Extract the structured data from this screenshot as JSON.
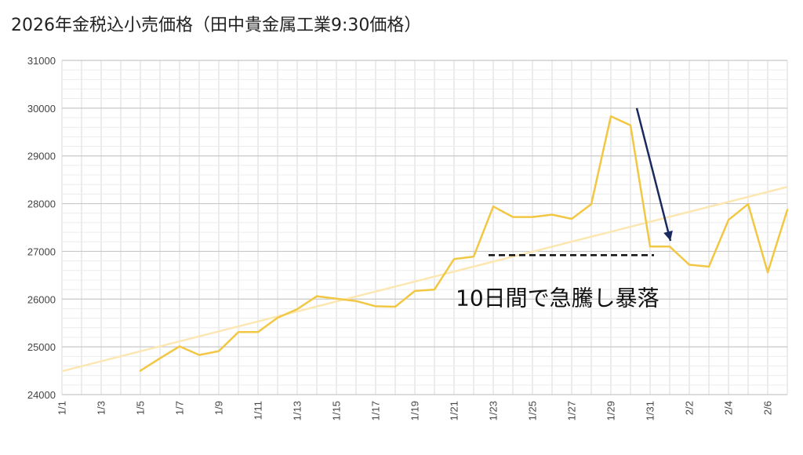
{
  "chart_data": {
    "type": "line",
    "title": "2026年金税込小売価格（田中貴金属工業9:30価格）",
    "xlabel": "",
    "ylabel": "",
    "ylim": [
      24000,
      31000
    ],
    "yticks": [
      24000,
      25000,
      26000,
      27000,
      28000,
      29000,
      30000,
      31000
    ],
    "ytick_labels": [
      "24000",
      "25000",
      "26000",
      "27000",
      "28000",
      "29000",
      "30000",
      "31000"
    ],
    "x_categories": [
      "1/1",
      "1/2",
      "1/3",
      "1/4",
      "1/5",
      "1/6",
      "1/7",
      "1/8",
      "1/9",
      "1/10",
      "1/11",
      "1/12",
      "1/13",
      "1/14",
      "1/15",
      "1/16",
      "1/17",
      "1/18",
      "1/19",
      "1/20",
      "1/21",
      "1/22",
      "1/23",
      "1/24",
      "1/25",
      "1/26",
      "1/27",
      "1/28",
      "1/29",
      "1/30",
      "1/31",
      "2/1",
      "2/2",
      "2/3",
      "2/4",
      "2/5",
      "2/6",
      "2/7"
    ],
    "x_tick_labels": [
      "1/1",
      "1/3",
      "1/5",
      "1/7",
      "1/9",
      "1/11",
      "1/13",
      "1/15",
      "1/17",
      "1/19",
      "1/21",
      "1/23",
      "1/25",
      "1/27",
      "1/29",
      "1/31",
      "2/2",
      "2/4",
      "2/6"
    ],
    "grid": true,
    "series": [
      {
        "color": "#F2C744",
        "values": [
          null,
          null,
          null,
          null,
          24500,
          24760,
          25010,
          24830,
          24910,
          25310,
          25310,
          25610,
          25790,
          26060,
          26010,
          25960,
          25850,
          25840,
          26170,
          26200,
          26840,
          26890,
          27940,
          27720,
          27720,
          27770,
          27680,
          27990,
          29830,
          29640,
          27100,
          27100,
          26720,
          26680,
          27660,
          27990,
          26560,
          27870
        ]
      }
    ],
    "trendline": {
      "color": "#FCE7B3",
      "start": 24490,
      "end": 28350
    },
    "annotations": {
      "text": "10日間で急騰し暴落",
      "dashed_line_level": 26920,
      "dashed_line_from": "1/23",
      "dashed_line_to": "2/1",
      "arrow_color": "#1A2A5E"
    }
  }
}
